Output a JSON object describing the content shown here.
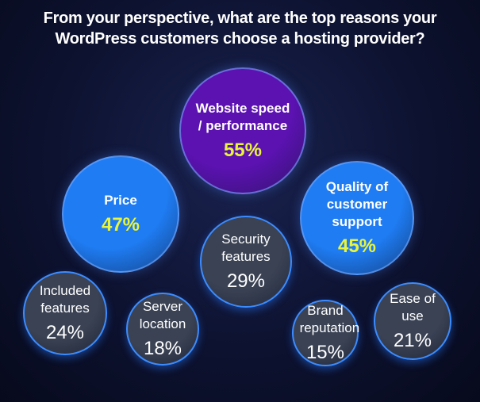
{
  "chart_data": {
    "type": "bubble",
    "title": "From your perspective, what are the top reasons your WordPress customers choose a hosting provider?",
    "categories": [
      "Website speed / performance",
      "Price",
      "Quality of customer support",
      "Security features",
      "Included features",
      "Server location",
      "Brand reputation",
      "Ease of use"
    ],
    "values": [
      55,
      47,
      45,
      29,
      24,
      18,
      15,
      21
    ],
    "value_labels": [
      "55%",
      "47%",
      "45%",
      "29%",
      "24%",
      "18%",
      "15%",
      "21%"
    ],
    "colors": [
      "#5b12b0",
      "#1f7cf2",
      "#1f7cf2",
      "#3a4254",
      "#3a4254",
      "#3a4254",
      "#3a4254",
      "#3a4254"
    ],
    "value_label_colors": [
      "#e8f53c",
      "#e8f53c",
      "#e8f53c",
      "#ffffff",
      "#ffffff",
      "#ffffff",
      "#ffffff",
      "#ffffff"
    ]
  }
}
